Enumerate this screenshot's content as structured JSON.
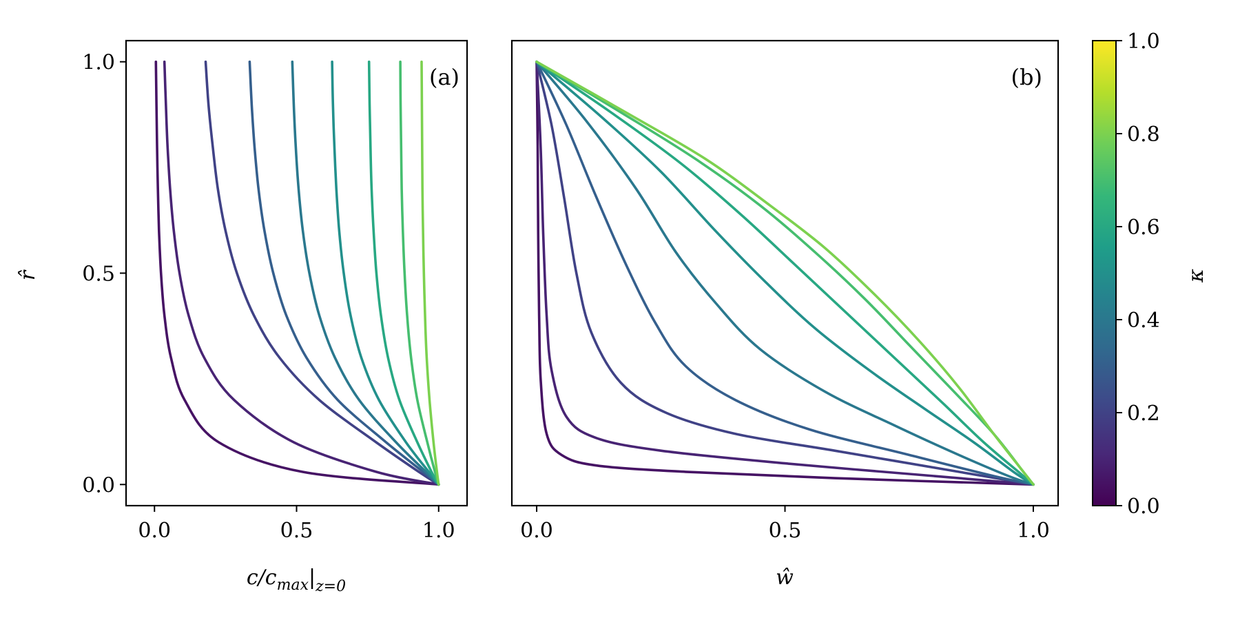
{
  "chart_data": [
    {
      "type": "line",
      "panel_label": "(a)",
      "xlabel": "c/c_max|z=0",
      "xlabel_parts": {
        "main": "c/c",
        "sub1": "max",
        "bar": "|",
        "sub2": "z=0"
      },
      "ylabel": "r̂",
      "xlim": [
        -0.1,
        1.1
      ],
      "ylim": [
        -0.05,
        1.05
      ],
      "xticks": [
        0.0,
        0.5,
        1.0
      ],
      "xtick_labels": [
        "0.0",
        "0.5",
        "1.0"
      ],
      "yticks": [
        0.0,
        0.5,
        1.0
      ],
      "ytick_labels": [
        "0.0",
        "0.5",
        "1.0"
      ],
      "grid": false,
      "series": [
        {
          "kappa": 0.05,
          "x0": 0.005,
          "x": [
            0.005,
            0.007,
            0.009,
            0.012,
            0.016,
            0.023,
            0.035,
            0.058,
            0.106,
            0.226,
            0.52,
            1.0
          ],
          "y": [
            1.0,
            0.9,
            0.8,
            0.7,
            0.6,
            0.5,
            0.4,
            0.3,
            0.2,
            0.1,
            0.03,
            0.0
          ]
        },
        {
          "kappa": 0.1,
          "x0": 0.035,
          "x": [
            0.035,
            0.04,
            0.046,
            0.055,
            0.068,
            0.088,
            0.12,
            0.175,
            0.28,
            0.49,
            0.78,
            1.0
          ],
          "y": [
            1.0,
            0.9,
            0.8,
            0.7,
            0.6,
            0.5,
            0.4,
            0.3,
            0.2,
            0.1,
            0.03,
            0.0
          ]
        },
        {
          "kappa": 0.2,
          "x0": 0.18,
          "x": [
            0.18,
            0.19,
            0.205,
            0.223,
            0.25,
            0.29,
            0.35,
            0.44,
            0.58,
            0.78,
            0.93,
            1.0
          ],
          "y": [
            1.0,
            0.9,
            0.8,
            0.7,
            0.6,
            0.5,
            0.4,
            0.3,
            0.2,
            0.1,
            0.03,
            0.0
          ]
        },
        {
          "kappa": 0.3,
          "x0": 0.335,
          "x": [
            0.335,
            0.342,
            0.352,
            0.366,
            0.387,
            0.418,
            0.464,
            0.535,
            0.645,
            0.815,
            0.945,
            1.0
          ],
          "y": [
            1.0,
            0.9,
            0.8,
            0.7,
            0.6,
            0.5,
            0.4,
            0.3,
            0.2,
            0.1,
            0.03,
            0.0
          ]
        },
        {
          "kappa": 0.4,
          "x0": 0.485,
          "x": [
            0.485,
            0.49,
            0.497,
            0.507,
            0.522,
            0.545,
            0.58,
            0.635,
            0.72,
            0.85,
            0.955,
            1.0
          ],
          "y": [
            1.0,
            0.9,
            0.8,
            0.7,
            0.6,
            0.5,
            0.4,
            0.3,
            0.2,
            0.1,
            0.03,
            0.0
          ]
        },
        {
          "kappa": 0.5,
          "x0": 0.625,
          "x": [
            0.625,
            0.628,
            0.633,
            0.64,
            0.65,
            0.666,
            0.69,
            0.728,
            0.79,
            0.885,
            0.965,
            1.0
          ],
          "y": [
            1.0,
            0.9,
            0.8,
            0.7,
            0.6,
            0.5,
            0.4,
            0.3,
            0.2,
            0.1,
            0.03,
            0.0
          ]
        },
        {
          "kappa": 0.6,
          "x0": 0.755,
          "x": [
            0.755,
            0.757,
            0.76,
            0.764,
            0.771,
            0.781,
            0.797,
            0.822,
            0.862,
            0.925,
            0.975,
            1.0
          ],
          "y": [
            1.0,
            0.9,
            0.8,
            0.7,
            0.6,
            0.5,
            0.4,
            0.3,
            0.2,
            0.1,
            0.03,
            0.0
          ]
        },
        {
          "kappa": 0.7,
          "x0": 0.865,
          "x": [
            0.865,
            0.866,
            0.868,
            0.87,
            0.874,
            0.88,
            0.889,
            0.903,
            0.925,
            0.96,
            0.987,
            1.0
          ],
          "y": [
            1.0,
            0.9,
            0.8,
            0.7,
            0.6,
            0.5,
            0.4,
            0.3,
            0.2,
            0.1,
            0.03,
            0.0
          ]
        },
        {
          "kappa": 0.8,
          "x0": 0.94,
          "x": [
            0.94,
            0.941,
            0.942,
            0.943,
            0.945,
            0.948,
            0.952,
            0.958,
            0.968,
            0.982,
            0.994,
            1.0
          ],
          "y": [
            1.0,
            0.9,
            0.8,
            0.7,
            0.6,
            0.5,
            0.4,
            0.3,
            0.2,
            0.1,
            0.03,
            0.0
          ]
        }
      ]
    },
    {
      "type": "line",
      "panel_label": "(b)",
      "xlabel": "ŵ",
      "ylabel": "",
      "xlim": [
        -0.05,
        1.05
      ],
      "ylim": [
        -0.05,
        1.05
      ],
      "xticks": [
        0.0,
        0.5,
        1.0
      ],
      "xtick_labels": [
        "0.0",
        "0.5",
        "1.0"
      ],
      "grid": false,
      "series": [
        {
          "kappa": 0.05,
          "x": [
            0.0,
            0.002,
            0.003,
            0.005,
            0.008,
            0.02,
            0.05,
            0.12,
            0.3,
            0.6,
            1.0
          ],
          "y": [
            1.0,
            0.8,
            0.6,
            0.4,
            0.25,
            0.12,
            0.07,
            0.045,
            0.03,
            0.015,
            0.0
          ]
        },
        {
          "kappa": 0.1,
          "x": [
            0.0,
            0.008,
            0.013,
            0.02,
            0.03,
            0.06,
            0.12,
            0.25,
            0.5,
            0.8,
            1.0
          ],
          "y": [
            1.0,
            0.8,
            0.6,
            0.4,
            0.27,
            0.16,
            0.11,
            0.08,
            0.05,
            0.02,
            0.0
          ]
        },
        {
          "kappa": 0.2,
          "x": [
            0.0,
            0.03,
            0.055,
            0.08,
            0.11,
            0.17,
            0.26,
            0.4,
            0.6,
            0.85,
            1.0
          ],
          "y": [
            1.0,
            0.85,
            0.68,
            0.5,
            0.36,
            0.24,
            0.17,
            0.12,
            0.08,
            0.03,
            0.0
          ]
        },
        {
          "kappa": 0.3,
          "x": [
            0.0,
            0.06,
            0.12,
            0.18,
            0.24,
            0.3,
            0.4,
            0.55,
            0.75,
            0.92,
            1.0
          ],
          "y": [
            1.0,
            0.85,
            0.68,
            0.52,
            0.38,
            0.28,
            0.2,
            0.13,
            0.07,
            0.02,
            0.0
          ]
        },
        {
          "kappa": 0.4,
          "x": [
            0.0,
            0.1,
            0.2,
            0.28,
            0.36,
            0.45,
            0.58,
            0.72,
            0.85,
            0.95,
            1.0
          ],
          "y": [
            1.0,
            0.86,
            0.7,
            0.55,
            0.43,
            0.32,
            0.22,
            0.14,
            0.07,
            0.02,
            0.0
          ]
        },
        {
          "kappa": 0.5,
          "x": [
            0.0,
            0.13,
            0.25,
            0.36,
            0.46,
            0.56,
            0.67,
            0.78,
            0.88,
            0.96,
            1.0
          ],
          "y": [
            1.0,
            0.87,
            0.74,
            0.6,
            0.48,
            0.37,
            0.27,
            0.18,
            0.1,
            0.03,
            0.0
          ]
        },
        {
          "kappa": 0.6,
          "x": [
            0.0,
            0.15,
            0.29,
            0.41,
            0.52,
            0.62,
            0.72,
            0.82,
            0.9,
            0.97,
            1.0
          ],
          "y": [
            1.0,
            0.88,
            0.76,
            0.64,
            0.52,
            0.41,
            0.3,
            0.19,
            0.1,
            0.03,
            0.0
          ]
        },
        {
          "kappa": 0.7,
          "x": [
            0.0,
            0.17,
            0.32,
            0.45,
            0.56,
            0.66,
            0.75,
            0.84,
            0.92,
            0.98,
            1.0
          ],
          "y": [
            1.0,
            0.88,
            0.77,
            0.66,
            0.55,
            0.44,
            0.33,
            0.22,
            0.12,
            0.03,
            0.0
          ]
        },
        {
          "kappa": 0.8,
          "x": [
            0.0,
            0.18,
            0.34,
            0.47,
            0.58,
            0.68,
            0.77,
            0.85,
            0.92,
            0.98,
            1.0
          ],
          "y": [
            1.0,
            0.88,
            0.77,
            0.66,
            0.56,
            0.45,
            0.34,
            0.23,
            0.12,
            0.03,
            0.0
          ]
        }
      ]
    },
    {
      "type": "colorbar",
      "label": "κ",
      "colormap": "viridis",
      "range": [
        0.0,
        1.0
      ],
      "ticks": [
        0.0,
        0.2,
        0.4,
        0.6,
        0.8,
        1.0
      ],
      "tick_labels": [
        "0.0",
        "0.2",
        "0.4",
        "0.6",
        "0.8",
        "1.0"
      ],
      "stops": [
        "#440154",
        "#482878",
        "#3e4989",
        "#31688e",
        "#26828e",
        "#1f9e89",
        "#35b779",
        "#6ece58",
        "#b5de2b",
        "#fde725"
      ]
    }
  ]
}
